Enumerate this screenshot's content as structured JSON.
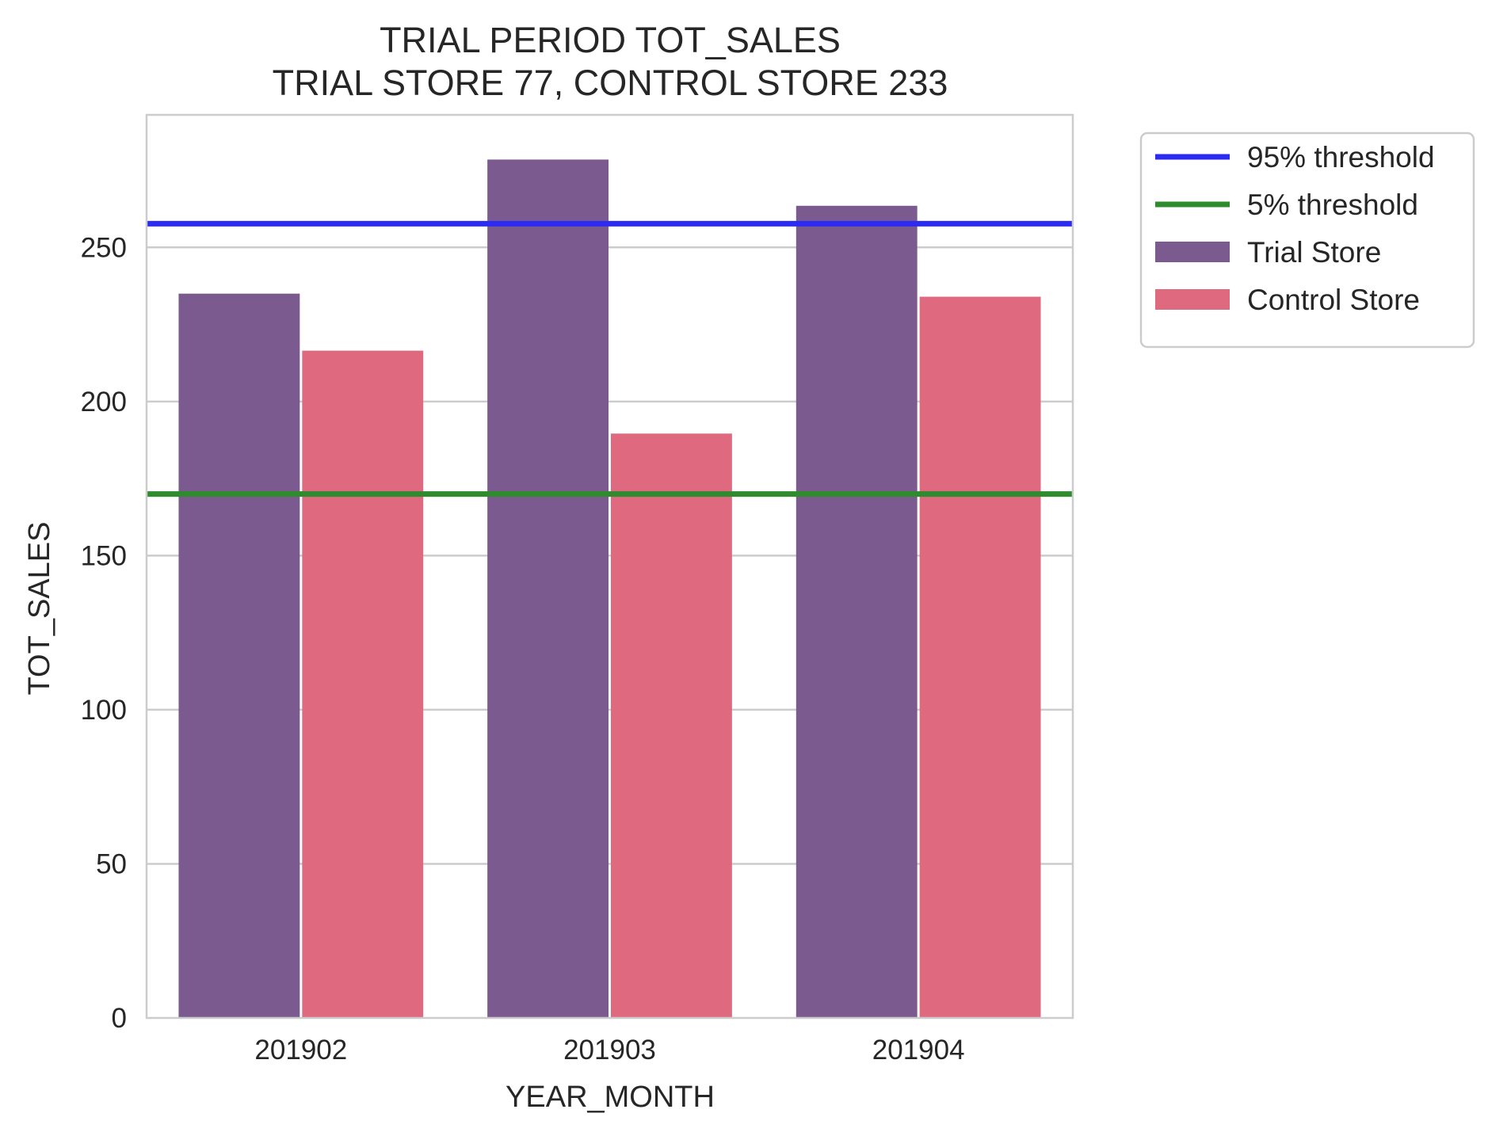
{
  "chart_data": {
    "type": "bar",
    "title": "TRIAL PERIOD TOT_SALES",
    "subtitle": "TRIAL STORE 77, CONTROL STORE 233",
    "xlabel": "YEAR_MONTH",
    "ylabel": "TOT_SALES",
    "categories": [
      "201902",
      "201903",
      "201904"
    ],
    "series": [
      {
        "name": "Trial Store",
        "color": "#7b5a8f",
        "values": [
          235.0,
          278.5,
          263.5
        ]
      },
      {
        "name": "Control Store",
        "color": "#df6a80",
        "values": [
          216.5,
          189.6,
          234.0
        ]
      }
    ],
    "reference_lines": [
      {
        "name": "95% threshold",
        "color": "#2b2bf2",
        "value": 257.7
      },
      {
        "name": "5% threshold",
        "color": "#2e8b2e",
        "value": 170.0
      }
    ],
    "ylim": [
      0,
      293
    ],
    "yticks": [
      0,
      50,
      100,
      150,
      200,
      250
    ],
    "grid": "y",
    "legend_placement": "outside-top-right"
  }
}
